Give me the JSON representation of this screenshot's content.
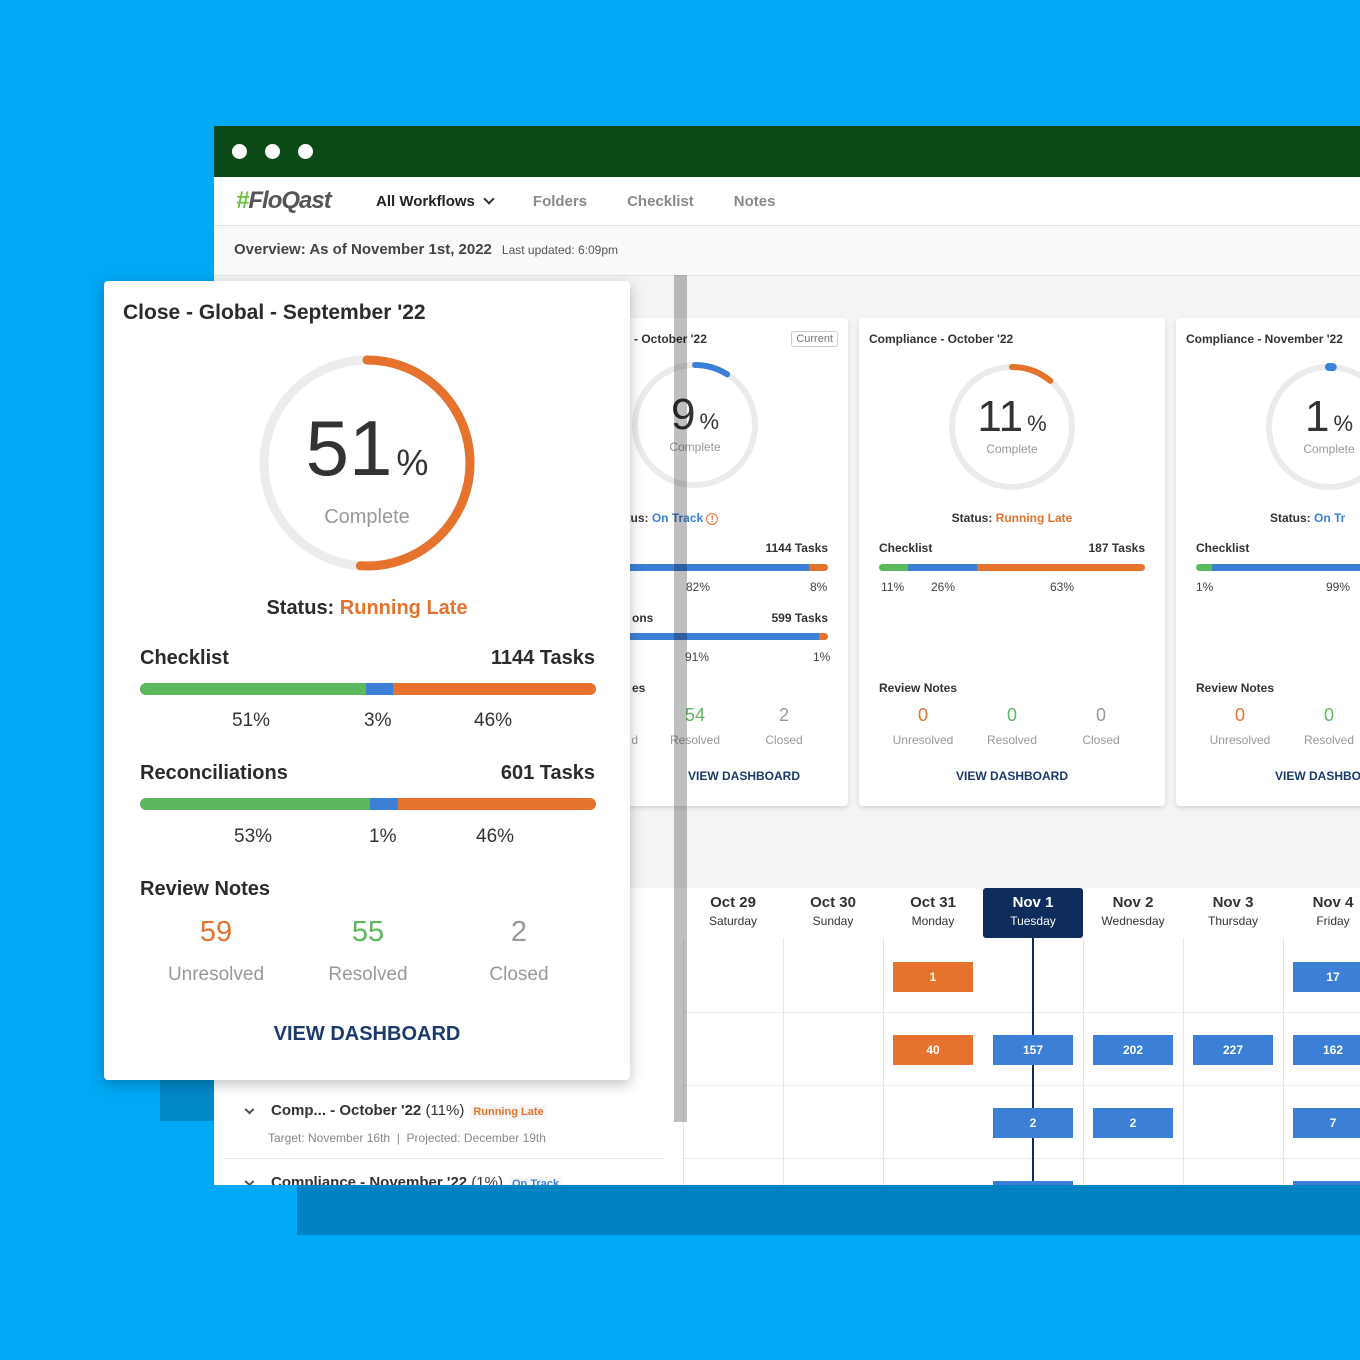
{
  "window": {
    "nav": {
      "logo": "FloQast",
      "items": [
        "All Workflows",
        "Folders",
        "Checklist",
        "Notes"
      ]
    },
    "overview": {
      "title": "Overview: As of November 1st, 2022",
      "updated": "Last updated: 6:09pm"
    }
  },
  "cards": {
    "oct": {
      "title": "- October '22",
      "badge": "Current",
      "percent": "9",
      "percent_value": 9,
      "complete": "Complete",
      "status_label": "Status:",
      "status": "On Track",
      "checklist_count": "1144 Tasks",
      "checklist_pcts": [
        "82%",
        "8%"
      ],
      "recon_label": "ons",
      "recon_count": "599 Tasks",
      "recon_pcts": [
        "91%",
        "1%"
      ],
      "review_label": "es",
      "review": [
        {
          "value": "54",
          "label": "Resolved"
        },
        {
          "value": "2",
          "label": "Closed"
        }
      ],
      "review_partial": "d",
      "view": "VIEW DASHBOARD"
    },
    "comp_oct": {
      "title": "Compliance - October '22",
      "percent": "11",
      "percent_value": 11,
      "complete": "Complete",
      "status_label": "Status:",
      "status": "Running Late",
      "checklist_label": "Checklist",
      "checklist_count": "187 Tasks",
      "checklist_pcts": [
        "11%",
        "26%",
        "63%"
      ],
      "review_label": "Review Notes",
      "review": [
        {
          "value": "0",
          "label": "Unresolved"
        },
        {
          "value": "0",
          "label": "Resolved"
        },
        {
          "value": "0",
          "label": "Closed"
        }
      ],
      "view": "VIEW DASHBOARD"
    },
    "comp_nov": {
      "title": "Compliance - November '22",
      "percent": "1",
      "percent_value": 1,
      "complete": "Complete",
      "status_label": "Status:",
      "status": "On Tr",
      "checklist_label": "Checklist",
      "checklist_pcts": [
        "1%",
        "99%"
      ],
      "review_label": "Review Notes",
      "review": [
        {
          "value": "0",
          "label": "Unresolved"
        },
        {
          "value": "0",
          "label": "Resolved"
        }
      ],
      "view": "VIEW DASHBO"
    }
  },
  "calendar": {
    "days": [
      {
        "date": "Oct 29",
        "weekday": "Saturday"
      },
      {
        "date": "Oct 30",
        "weekday": "Sunday"
      },
      {
        "date": "Oct 31",
        "weekday": "Monday"
      },
      {
        "date": "Nov 1",
        "weekday": "Tuesday"
      },
      {
        "date": "Nov 2",
        "weekday": "Wednesday"
      },
      {
        "date": "Nov 3",
        "weekday": "Thursday"
      },
      {
        "date": "Nov 4",
        "weekday": "Friday"
      }
    ],
    "chips": {
      "r1_oct31": "1",
      "r1_nov4": "17",
      "r2_oct31": "40",
      "r2_nov1": "157",
      "r2_nov2": "202",
      "r2_nov3": "227",
      "r2_nov4": "162",
      "r3_nov1": "2",
      "r3_nov2": "2",
      "r3_nov4": "7"
    }
  },
  "left_rows": {
    "row1": {
      "title": "Comp... - October '22",
      "pct": "(11%)",
      "tag": "Running Late",
      "target": "Target: November 16th",
      "projected": "Projected: December 19th"
    },
    "row2": {
      "title": "Compliance - November '22",
      "pct": "(1%)",
      "tag": "On Track"
    }
  },
  "feature": {
    "title": "Close - Global - September '22",
    "percent": "51",
    "percent_value": 51,
    "percent_sym": "%",
    "complete": "Complete",
    "status_label": "Status:",
    "status": "Running Late",
    "checklist": {
      "label": "Checklist",
      "count": "1144 Tasks",
      "pcts": [
        "51%",
        "3%",
        "46%"
      ]
    },
    "recon": {
      "label": "Reconciliations",
      "count": "601 Tasks",
      "pcts": [
        "53%",
        "1%",
        "46%"
      ]
    },
    "review_label": "Review Notes",
    "review": [
      {
        "value": "59",
        "label": "Unresolved"
      },
      {
        "value": "55",
        "label": "Resolved"
      },
      {
        "value": "2",
        "label": "Closed"
      }
    ],
    "view": "VIEW DASHBOARD"
  },
  "colors": {
    "green": "#5cb85c",
    "blue": "#3c7fd7",
    "orange": "#e5722d",
    "navy": "#0f2d5c",
    "titlebar": "#0b4a17",
    "background": "#00a8f5"
  }
}
